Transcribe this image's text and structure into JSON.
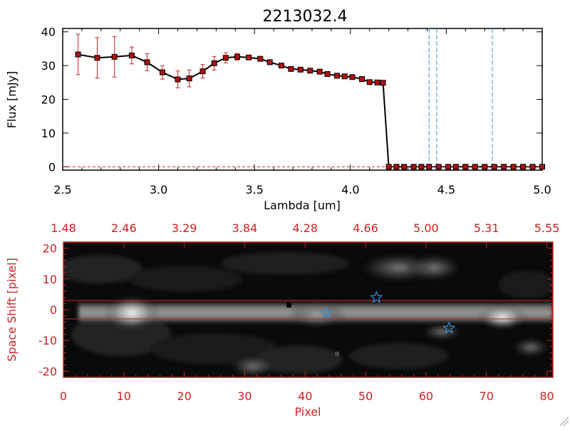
{
  "colors": {
    "axis": "#000000",
    "red": "#cc2222",
    "blue": "#3a8fd6",
    "marker": "#b01010"
  },
  "chart_data": [
    {
      "type": "line",
      "title": "2213032.4",
      "xlabel": "Lambda [um]",
      "ylabel": "Flux [mJy]",
      "xlim": [
        2.5,
        5.0
      ],
      "ylim": [
        -1,
        41
      ],
      "xticks": [
        "2.5",
        "3.0",
        "3.5",
        "4.0",
        "4.5",
        "5.0"
      ],
      "yticks": [
        "0",
        "10",
        "20",
        "30",
        "40"
      ],
      "x": [
        2.58,
        2.68,
        2.77,
        2.86,
        2.94,
        3.02,
        3.1,
        3.16,
        3.23,
        3.29,
        3.35,
        3.41,
        3.47,
        3.53,
        3.58,
        3.64,
        3.69,
        3.74,
        3.79,
        3.84,
        3.88,
        3.93,
        3.97,
        4.01,
        4.06,
        4.1,
        4.14,
        4.17,
        4.2,
        4.24,
        4.28,
        4.33,
        4.37,
        4.41,
        4.46,
        4.51,
        4.55,
        4.6,
        4.65,
        4.7,
        4.75,
        4.8,
        4.85,
        4.9,
        4.95,
        5.0
      ],
      "y": [
        33.3,
        32.3,
        32.6,
        33.0,
        31.0,
        28.0,
        25.9,
        26.2,
        28.3,
        30.7,
        32.3,
        32.6,
        32.4,
        32.0,
        31.0,
        30.0,
        29.0,
        28.8,
        28.5,
        28.2,
        27.5,
        27.0,
        26.8,
        26.6,
        26.0,
        25.1,
        25.0,
        24.9,
        0,
        0,
        0,
        0,
        0,
        0,
        0,
        0,
        0,
        0,
        0,
        0,
        0,
        0,
        0,
        0,
        0,
        0
      ],
      "yerr": [
        6,
        6,
        6,
        2.5,
        2.5,
        2,
        2.5,
        2.5,
        2,
        2,
        1.5,
        1,
        0.5,
        0.5,
        0.5,
        0.5,
        0.5,
        0.5,
        0.5,
        0.5,
        0.5,
        0.5,
        0.5,
        0.5,
        0.5,
        0.5,
        0.5,
        0.5,
        0,
        0,
        0,
        0,
        0,
        0,
        0,
        0,
        0,
        0,
        0,
        0,
        0,
        0,
        0,
        0,
        0,
        0
      ],
      "vlines": [
        4.41,
        4.45,
        4.74
      ],
      "grid": false
    },
    {
      "type": "heatmap",
      "xlabel": "Pixel",
      "ylabel": "Space Shift [pixel]",
      "xlim": [
        0,
        81
      ],
      "ylim": [
        -22,
        22
      ],
      "xticks": [
        "0",
        "10",
        "20",
        "30",
        "40",
        "50",
        "60",
        "70",
        "80"
      ],
      "yticks": [
        "-20",
        "-10",
        "0",
        "10",
        "20"
      ],
      "top_ticks": [
        "1.48",
        "2.46",
        "3.29",
        "3.84",
        "4.28",
        "4.66",
        "5.00",
        "5.31",
        "5.55"
      ],
      "hlines": [
        3,
        -3
      ],
      "stars": [
        {
          "x": 43.5,
          "y": -1
        },
        {
          "x": 51.8,
          "y": 4
        },
        {
          "x": 63.8,
          "y": -6
        }
      ]
    }
  ]
}
